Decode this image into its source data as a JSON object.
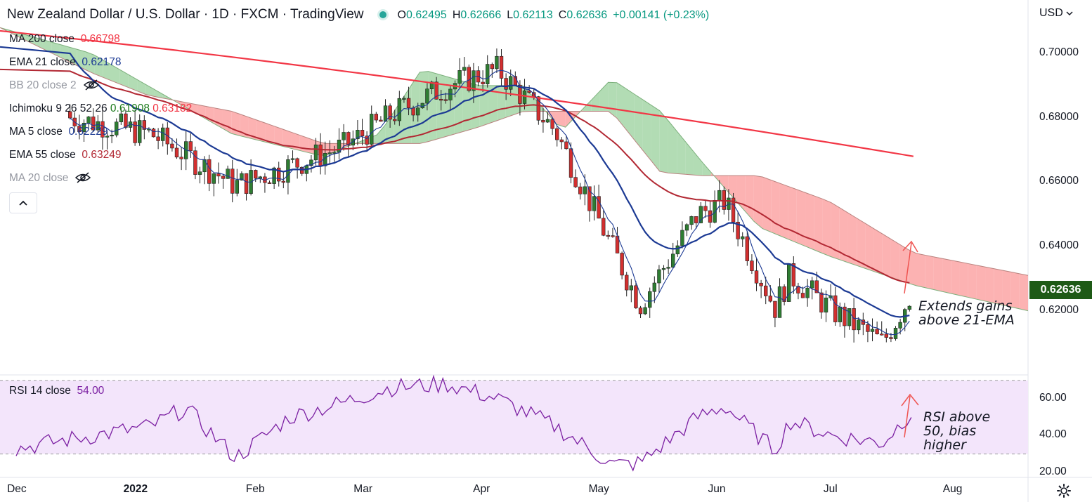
{
  "header": {
    "title": "New Zealand Dollar / U.S. Dollar · 1D · FXCM · TradingView",
    "open_label": "O",
    "open": "0.62495",
    "high_label": "H",
    "high": "0.62666",
    "low_label": "L",
    "low": "0.62113",
    "close_label": "C",
    "close": "0.62636",
    "change": "+0.00141 (+0.23%)"
  },
  "legend": {
    "ma200": {
      "label": "MA 200 close",
      "value": "0.66798",
      "color": "#f23645"
    },
    "ema21": {
      "label": "EMA 21 close",
      "value": "0.62178",
      "color": "#1c3a94"
    },
    "bb": {
      "label": "BB 20 close 2"
    },
    "ichimoku": {
      "label": "Ichimoku 9 26 52 26",
      "value1": "0.61908",
      "value2": "0.63182",
      "color1": "#1e7b1e",
      "color2": "#f23645"
    },
    "ma5": {
      "label": "MA 5 close",
      "value": "0.62229",
      "color": "#1c3a94"
    },
    "ema55": {
      "label": "EMA 55 close",
      "value": "0.63249",
      "color": "#b22833"
    },
    "ma20": {
      "label": "MA 20 close"
    }
  },
  "currency": "USD",
  "last_price": "0.62636",
  "rsi_legend": {
    "label": "RSI 14 close",
    "value": "54.00",
    "color": "#7b1fa2"
  },
  "annotations": {
    "price": "Extends gains\nabove 21-EMA",
    "rsi": "RSI above\n50, bias\nhigher"
  },
  "icons": [
    "eye-slash-icon",
    "chevron-up-icon",
    "chevron-down-icon",
    "gear-icon"
  ],
  "chart_data": [
    {
      "type": "candlestick",
      "title": "New Zealand Dollar / U.S. Dollar · 1D · FXCM",
      "y_ticks": [
        "0.70000",
        "0.68000",
        "0.66000",
        "0.64000",
        "0.62000"
      ],
      "x_ticks": [
        "Dec",
        "2022",
        "Feb",
        "Mar",
        "Apr",
        "May",
        "Jun",
        "Jul",
        "Aug"
      ],
      "ylim": [
        0.6,
        0.705
      ],
      "anchors": {
        "dates": [
          "2021-12-15",
          "2022-01-05",
          "2022-01-27",
          "2022-02-10",
          "2022-02-24",
          "2022-03-10",
          "2022-03-23",
          "2022-04-05",
          "2022-04-20",
          "2022-05-05",
          "2022-05-12",
          "2022-05-27",
          "2022-06-03",
          "2022-06-16",
          "2022-06-20",
          "2022-07-01",
          "2022-07-14",
          "2022-07-22"
        ],
        "close": [
          0.68,
          0.675,
          0.659,
          0.665,
          0.671,
          0.682,
          0.69,
          0.695,
          0.676,
          0.639,
          0.622,
          0.65,
          0.654,
          0.621,
          0.631,
          0.62,
          0.61,
          0.6264
        ]
      },
      "ma200": {
        "start": 0.707,
        "end": 0.668
      },
      "ema55": {
        "start": 0.695,
        "end": 0.6325
      },
      "ema21": {
        "start": 0.702,
        "end": 0.6218
      },
      "ichimoku_cloud": {
        "span_a": [
          0.708,
          0.7,
          0.69,
          0.675,
          0.668,
          0.675,
          0.695,
          0.69,
          0.69,
          0.676,
          0.692,
          0.682,
          0.666,
          0.646,
          0.637,
          0.628,
          0.62
        ],
        "span_b": [
          0.708,
          0.694,
          0.687,
          0.682,
          0.672,
          0.672,
          0.672,
          0.677,
          0.682,
          0.682,
          0.682,
          0.663,
          0.662,
          0.662,
          0.654,
          0.638,
          0.631
        ]
      }
    },
    {
      "type": "line",
      "title": "RSI 14 close",
      "y_ticks": [
        "60.00",
        "40.00",
        "20.00"
      ],
      "ylim": [
        20,
        70
      ],
      "bands": [
        30,
        70
      ],
      "anchors": {
        "dates": [
          "2021-12-01",
          "2021-12-15",
          "2022-01-05",
          "2022-01-14",
          "2022-01-27",
          "2022-02-10",
          "2022-02-24",
          "2022-03-08",
          "2022-03-23",
          "2022-04-05",
          "2022-04-20",
          "2022-05-05",
          "2022-05-12",
          "2022-05-27",
          "2022-06-03",
          "2022-06-16",
          "2022-06-20",
          "2022-07-01",
          "2022-07-14",
          "2022-07-22"
        ],
        "values": [
          33,
          38,
          45,
          55,
          28,
          50,
          58,
          66,
          68,
          60,
          45,
          24,
          25,
          50,
          56,
          32,
          48,
          40,
          36,
          54
        ]
      }
    }
  ]
}
